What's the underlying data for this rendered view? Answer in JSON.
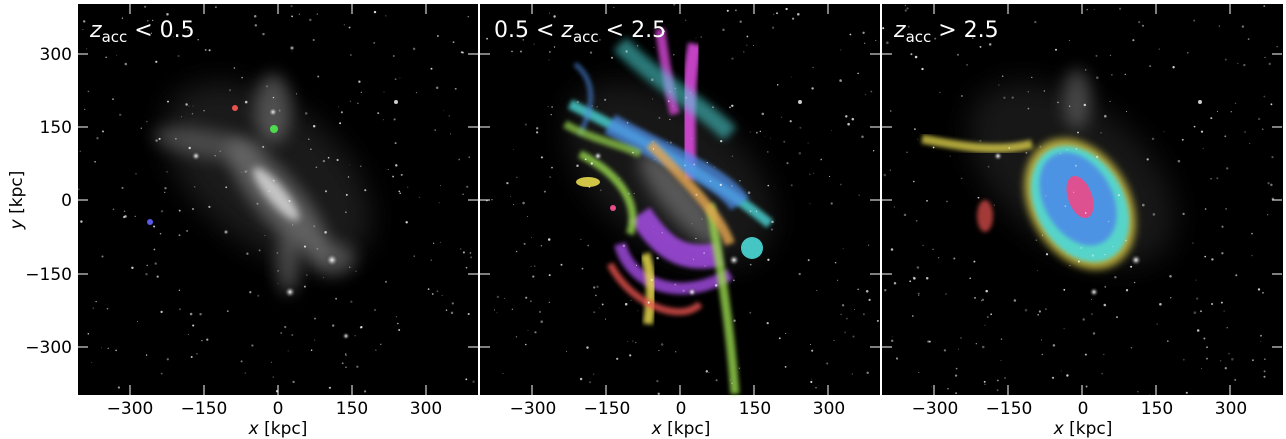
{
  "figure": {
    "panels": [
      {
        "title_main": "z",
        "title_sub": "acc",
        "title_rest": " < 0.5"
      },
      {
        "title_pre": "0.5 < ",
        "title_main": "z",
        "title_sub": "acc",
        "title_rest": " < 2.5"
      },
      {
        "title_main": "z",
        "title_sub": "acc",
        "title_rest": " > 2.5"
      }
    ],
    "xlabel_var": "x",
    "xlabel_unit": " [kpc]",
    "ylabel_var": "y",
    "ylabel_unit": " [kpc]",
    "xticks": [
      "−300",
      "−150",
      "0",
      "150",
      "300"
    ],
    "yticks": [
      "300",
      "150",
      "0",
      "−150",
      "−300"
    ],
    "background_color": "#000000",
    "stream_colors": [
      "#e8524f",
      "#4ddb4d",
      "#5a5ae6",
      "#e64de6",
      "#4dd9d9",
      "#e6d94d",
      "#a64de6",
      "#4d8ce6",
      "#99d94d",
      "#e6a64d",
      "#e64d8c"
    ]
  }
}
